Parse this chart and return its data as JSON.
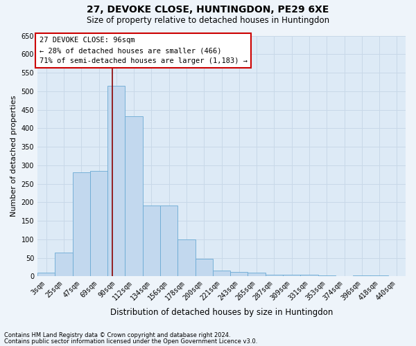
{
  "title": "27, DEVOKE CLOSE, HUNTINGDON, PE29 6XE",
  "subtitle": "Size of property relative to detached houses in Huntingdon",
  "xlabel": "Distribution of detached houses by size in Huntingdon",
  "ylabel": "Number of detached properties",
  "categories": [
    "3sqm",
    "25sqm",
    "47sqm",
    "69sqm",
    "90sqm",
    "112sqm",
    "134sqm",
    "156sqm",
    "178sqm",
    "200sqm",
    "221sqm",
    "243sqm",
    "265sqm",
    "287sqm",
    "309sqm",
    "331sqm",
    "353sqm",
    "374sqm",
    "396sqm",
    "418sqm",
    "440sqm"
  ],
  "values": [
    10,
    65,
    280,
    285,
    515,
    432,
    192,
    192,
    100,
    47,
    15,
    12,
    10,
    5,
    5,
    4,
    3,
    1,
    3,
    2,
    1
  ],
  "bar_color": "#c2d8ee",
  "bar_edge_color": "#6aaad4",
  "red_line_color": "#8b0000",
  "annotation_text": "27 DEVOKE CLOSE: 96sqm\n← 28% of detached houses are smaller (466)\n71% of semi-detached houses are larger (1,183) →",
  "annotation_box_color": "#ffffff",
  "annotation_box_edge": "#cc0000",
  "grid_color": "#c8d8e8",
  "bg_color": "#ddeaf6",
  "fig_bg_color": "#eef4fa",
  "ylim_max": 650,
  "yticks": [
    0,
    50,
    100,
    150,
    200,
    250,
    300,
    350,
    400,
    450,
    500,
    550,
    600,
    650
  ],
  "footer1": "Contains HM Land Registry data © Crown copyright and database right 2024.",
  "footer2": "Contains public sector information licensed under the Open Government Licence v3.0.",
  "title_fontsize": 10,
  "subtitle_fontsize": 8.5,
  "tick_fontsize": 7,
  "ylabel_fontsize": 8,
  "xlabel_fontsize": 8.5,
  "annotation_fontsize": 7.5,
  "footer_fontsize": 6,
  "red_line_bar_index": 4
}
